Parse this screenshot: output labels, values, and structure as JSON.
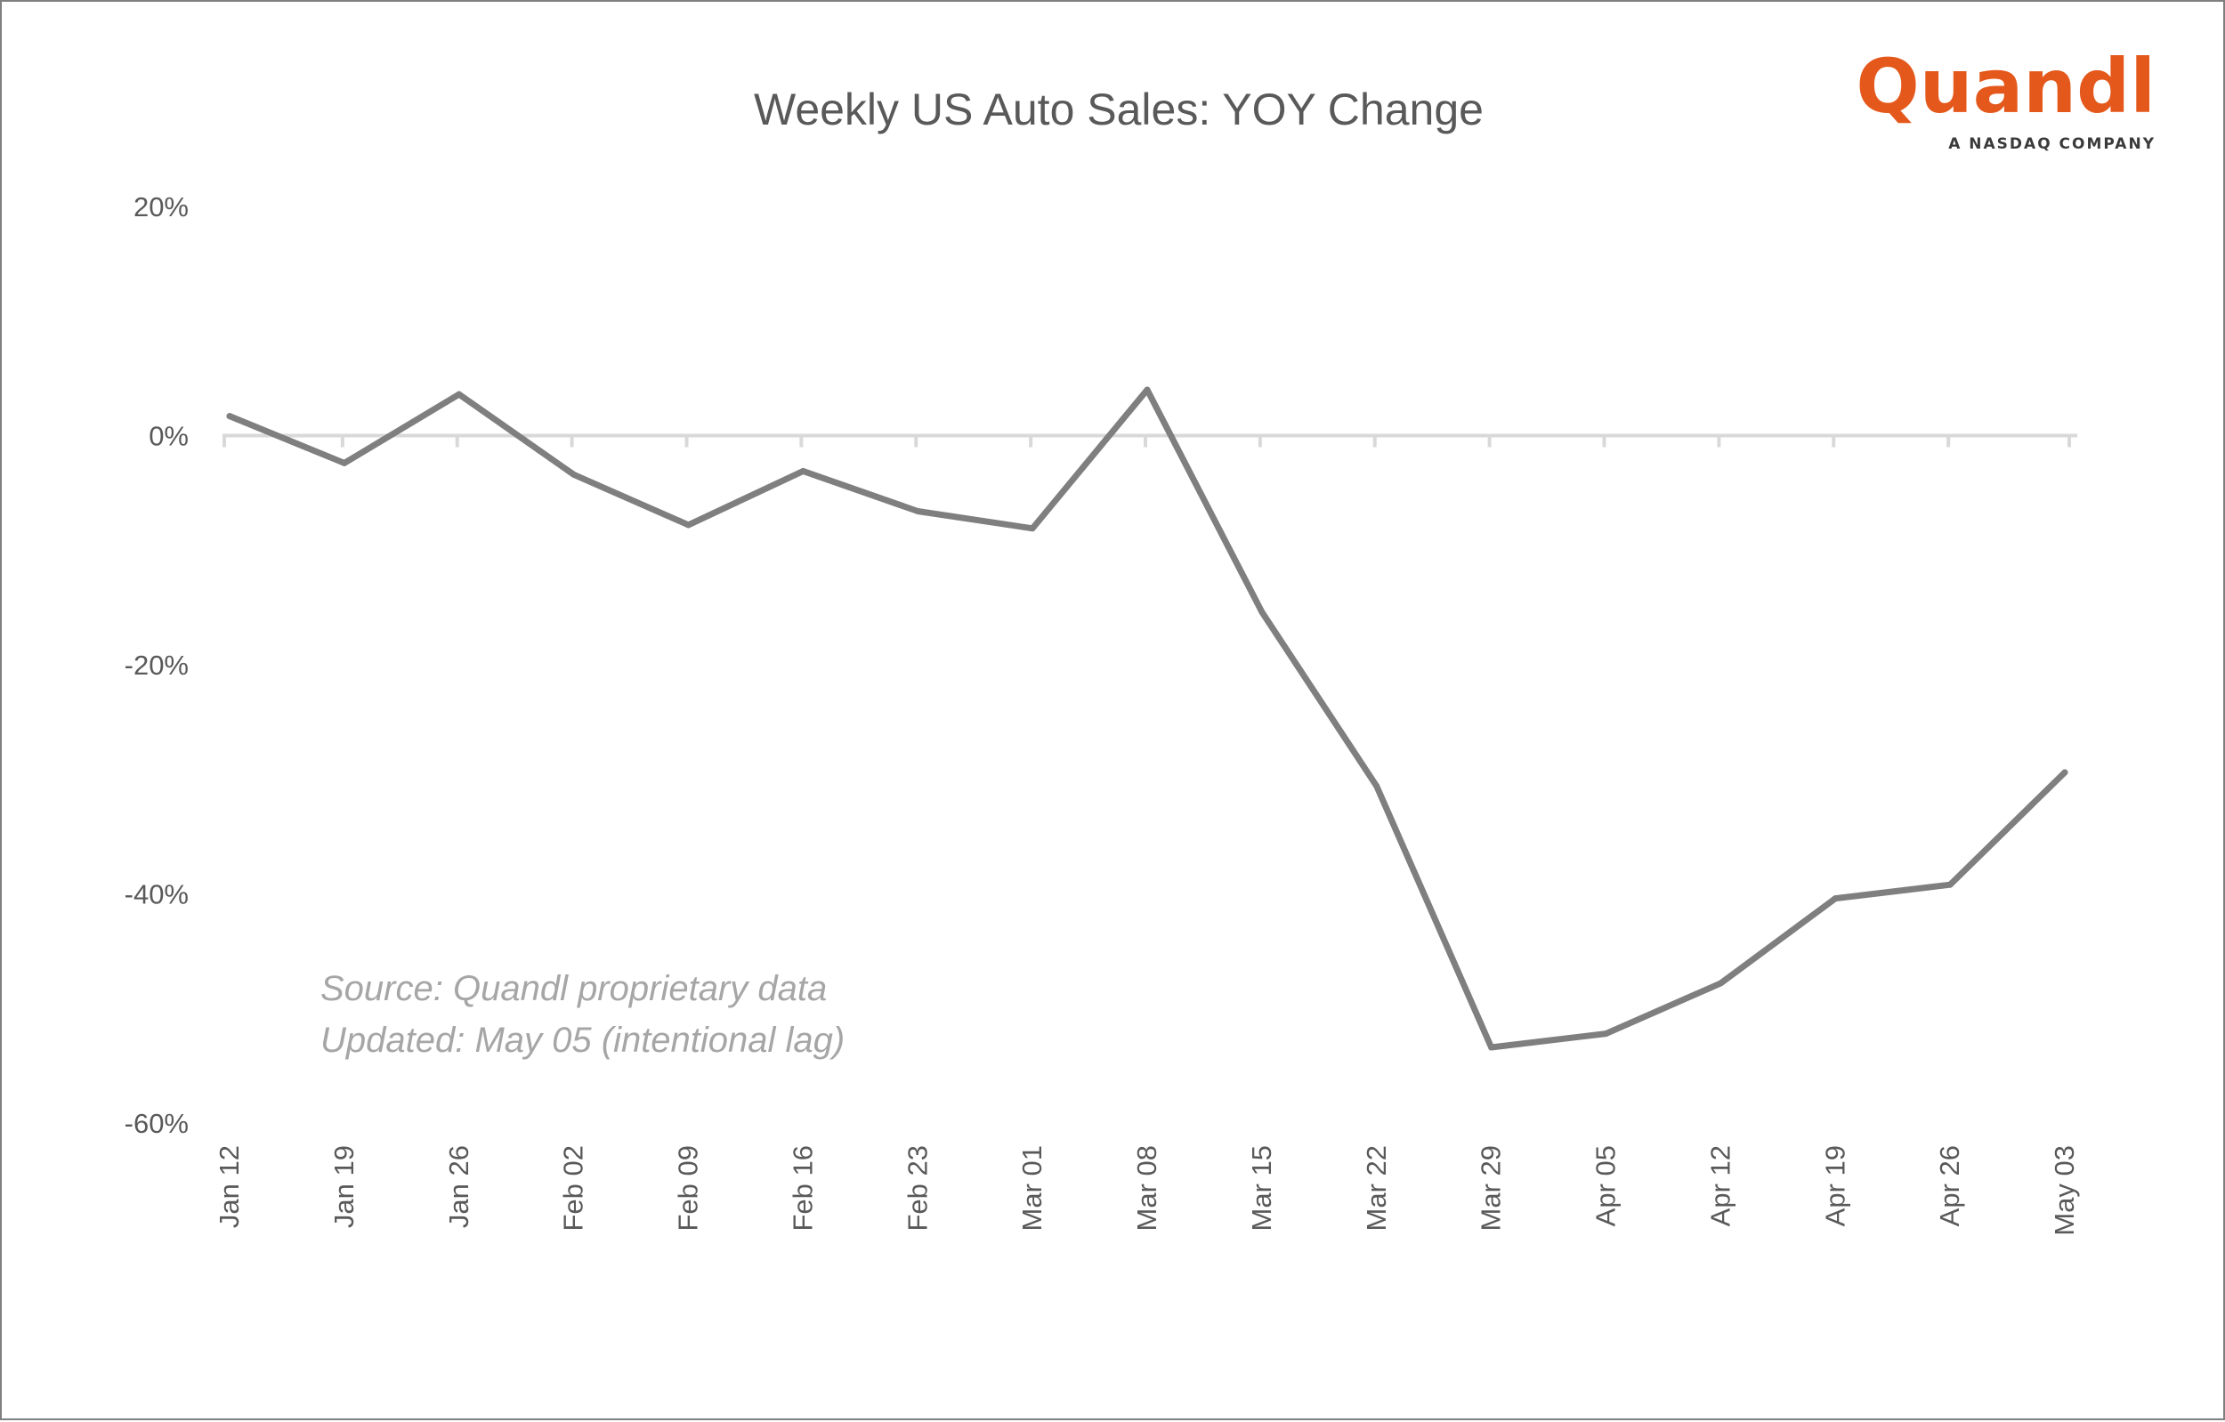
{
  "chart_data": {
    "type": "line",
    "title": "Weekly US Auto Sales: YOY Change",
    "xlabel": "",
    "ylabel": "",
    "categories": [
      "Jan 12",
      "Jan 19",
      "Jan 26",
      "Feb 02",
      "Feb 09",
      "Feb 16",
      "Feb 23",
      "Mar 01",
      "Mar 08",
      "Mar 15",
      "Mar 22",
      "Mar 29",
      "Apr 05",
      "Apr 12",
      "Apr 19",
      "Apr 26",
      "May 03"
    ],
    "series": [
      {
        "values": [
          1.7,
          -2.4,
          3.6,
          -3.4,
          -7.8,
          -3.1,
          -6.6,
          -8.1,
          4.0,
          -15.4,
          -30.6,
          -53.4,
          -52.2,
          -47.8,
          -40.4,
          -39.2,
          -29.4
        ]
      }
    ],
    "ylim": [
      -60,
      20
    ],
    "yticks": [
      20,
      0,
      -20,
      -40,
      -60
    ],
    "ytick_labels": [
      "20%",
      "0%",
      "-20%",
      "-40%",
      "-60%"
    ],
    "grid": false,
    "legend": "none",
    "colors": {
      "line": "#7f7f7f",
      "zero_axis": "#d9d9d9",
      "title": "#595959",
      "note": "#a6a6a6",
      "frame": "#7f7f7f"
    },
    "annotations": [
      "Source: Quandl proprietary data",
      "Updated: May 05  (intentional lag)"
    ]
  },
  "logo": {
    "wordmark": "Quandl",
    "tagline": "A NASDAQ COMPANY",
    "color": "#e4581b"
  }
}
